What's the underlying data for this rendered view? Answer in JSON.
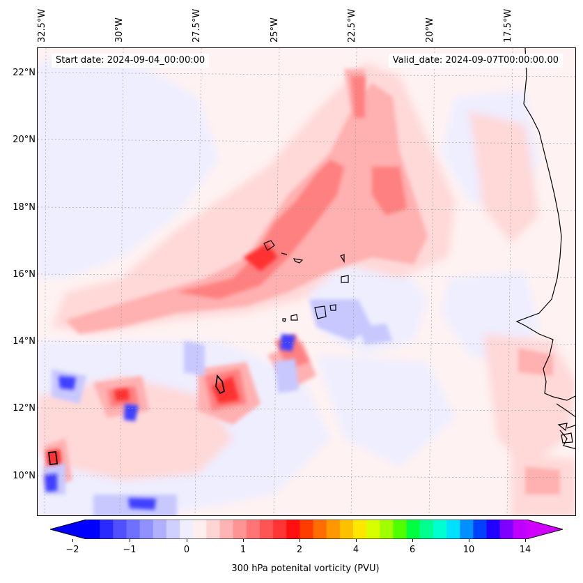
{
  "header": {
    "start_date": "Start date: 2024-09-04_00:00:00",
    "valid_date": "Valid_date: 2024-09-07T00:00:00.00"
  },
  "lon_labels": [
    "32.5°W",
    "30°W",
    "27.5°W",
    "25°W",
    "22.5°W",
    "20°W",
    "17.5°W"
  ],
  "lat_labels": [
    "22°N",
    "20°N",
    "18°N",
    "16°N",
    "14°N",
    "12°N",
    "10°N"
  ],
  "colorbar": {
    "label": "300 hPa potenital vorticity (PVU)",
    "ticks": [
      "−2",
      "−1",
      "0",
      "1",
      "2",
      "4",
      "6",
      "10",
      "14"
    ],
    "colors": [
      "#0000ff",
      "#2a2aff",
      "#5050ff",
      "#7070ff",
      "#9090ff",
      "#b0b0ff",
      "#d0d0ff",
      "#eeeeff",
      "#ffeeee",
      "#ffd4d4",
      "#ffb4b4",
      "#ff9494",
      "#ff7474",
      "#ff5454",
      "#ff3434",
      "#ff1010",
      "#ff3c00",
      "#ff6c00",
      "#ff9800",
      "#ffc000",
      "#ffe800",
      "#d8ff00",
      "#a0ff00",
      "#50ff00",
      "#00ff40",
      "#00ff90",
      "#00ffd0",
      "#00e0ff",
      "#0090ff",
      "#0040ff",
      "#2000ff",
      "#8000ff",
      "#c000ff"
    ],
    "under_color": "#0000ff",
    "over_color": "#d000ff"
  },
  "field_colors": {
    "background": "#fff2f2",
    "light_blue": "#eeeeff",
    "blue": "#c8c8ff",
    "deep_blue": "#4040ff",
    "pale_red": "#ffd8d8",
    "pink": "#ffb0b0",
    "red": "#ff8080",
    "deep_red": "#ff3030",
    "coast": "#000000"
  }
}
